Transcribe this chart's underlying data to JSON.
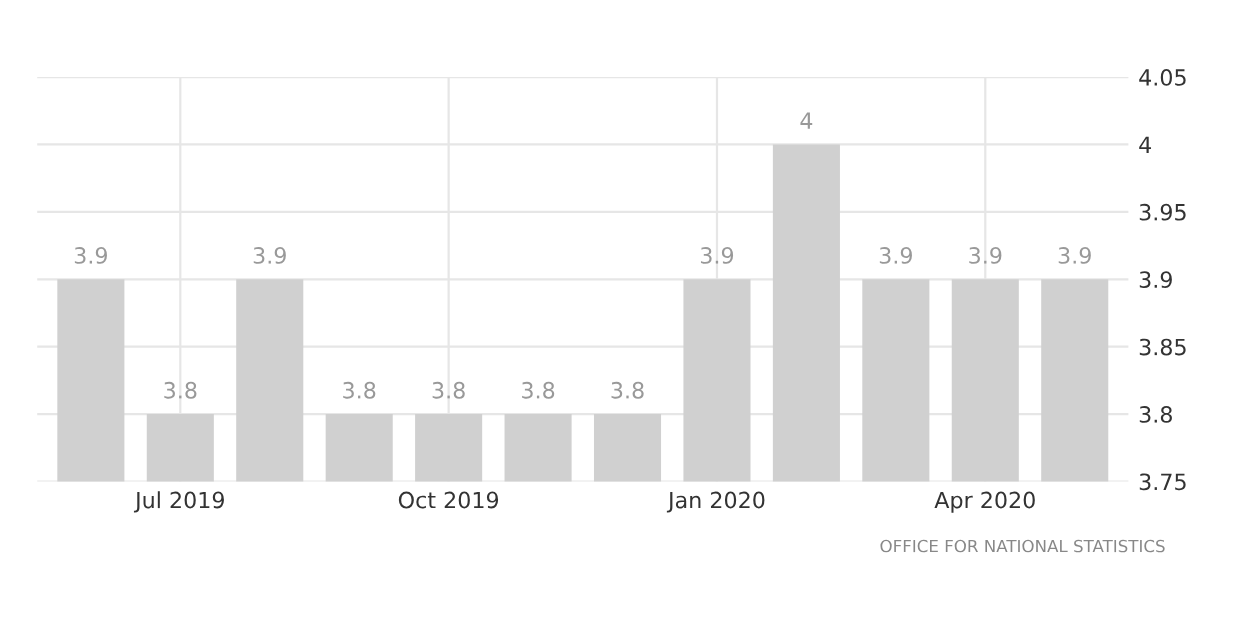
{
  "chart_data": {
    "type": "bar",
    "categories": [
      null,
      "Jul 2019",
      null,
      null,
      "Oct 2019",
      null,
      null,
      "Jan 2020",
      null,
      null,
      "Apr 2020",
      null
    ],
    "values": [
      3.9,
      3.8,
      3.9,
      3.8,
      3.8,
      3.8,
      3.8,
      3.9,
      4,
      3.9,
      3.9,
      3.9
    ],
    "color": "#d0d0d0",
    "data_labels": true,
    "grid": true,
    "ylim": [
      3.75,
      4.05
    ],
    "yticks": [
      3.75,
      3.8,
      3.85,
      3.9,
      3.95,
      4,
      4.05
    ],
    "annotations": [
      "OFFICE FOR NATIONAL STATISTICS"
    ]
  }
}
